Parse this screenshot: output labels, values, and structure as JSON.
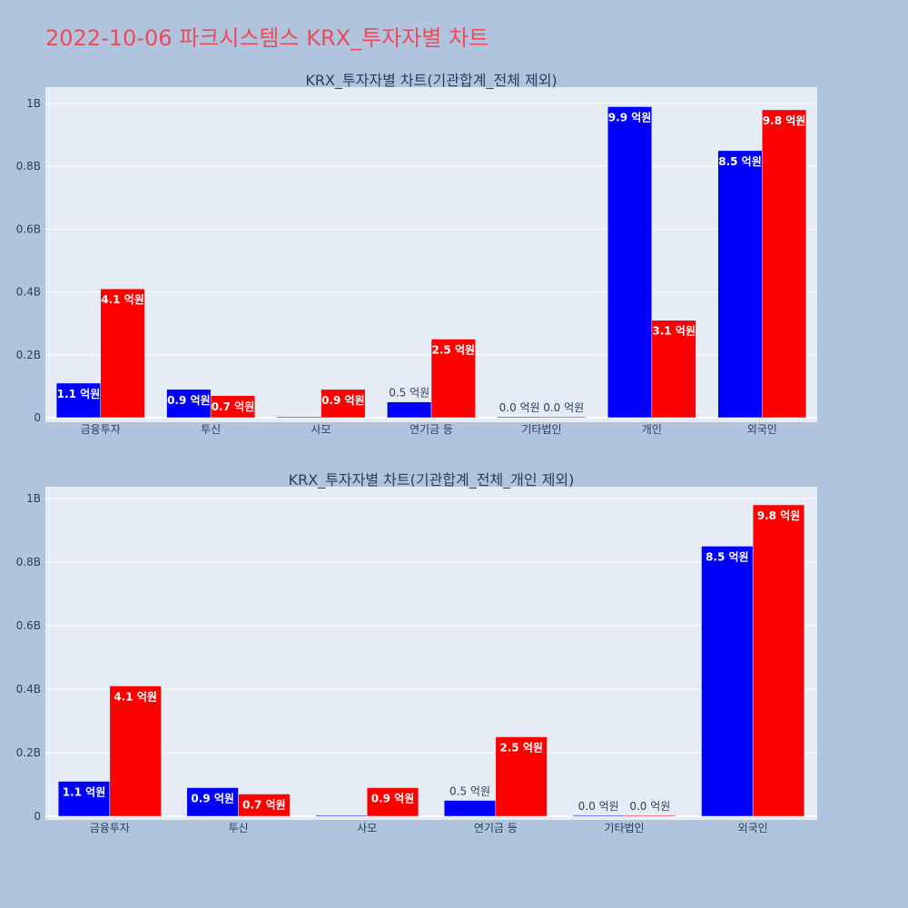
{
  "page": {
    "title": "2022-10-06 파크시스템스 KRX_투자자별 차트"
  },
  "colors": {
    "buy": "#0000ff",
    "sell": "#ff0000",
    "plot_bg": "#e5ecf6",
    "page_bg": "#b0c4de",
    "title": "#ee4a5a"
  },
  "chart_data": [
    {
      "type": "bar",
      "title": "KRX_투자자별 차트(기관합계_전체 제외)",
      "categories": [
        "금융투자",
        "투신",
        "사모",
        "연기금 등",
        "기타법인",
        "개인",
        "외국인"
      ],
      "series": [
        {
          "values": [
            110000000,
            90000000,
            0,
            50000000,
            0,
            990000000,
            850000000
          ],
          "labels": [
            "1.1 억원",
            "0.9 억원",
            "",
            "0.5 억원",
            "0.0 억원",
            "9.9 억원",
            "8.5 억원"
          ]
        },
        {
          "values": [
            410000000,
            70000000,
            90000000,
            250000000,
            0,
            310000000,
            980000000
          ],
          "labels": [
            "4.1 억원",
            "0.7 억원",
            "0.9 억원",
            "2.5 억원",
            "0.0 억원",
            "3.1 억원",
            "9.8 억원"
          ]
        }
      ],
      "ylim": [
        0,
        1050000000
      ],
      "yticks": [
        0,
        200000000,
        400000000,
        600000000,
        800000000,
        1000000000
      ],
      "ytick_labels": [
        "0",
        "0.2B",
        "0.4B",
        "0.6B",
        "0.8B",
        "1B"
      ],
      "grid": true,
      "legend": "none"
    },
    {
      "type": "bar",
      "title": "KRX_투자자별 차트(기관합계_전체_개인 제외)",
      "categories": [
        "금융투자",
        "투신",
        "사모",
        "연기금 등",
        "기타법인",
        "외국인"
      ],
      "series": [
        {
          "values": [
            110000000,
            90000000,
            0,
            50000000,
            0,
            850000000
          ],
          "labels": [
            "1.1 억원",
            "0.9 억원",
            "",
            "0.5 억원",
            "0.0 억원",
            "8.5 억원"
          ]
        },
        {
          "values": [
            410000000,
            70000000,
            90000000,
            250000000,
            0,
            980000000
          ],
          "labels": [
            "4.1 억원",
            "0.7 억원",
            "0.9 억원",
            "2.5 억원",
            "0.0 억원",
            "9.8 억원"
          ]
        }
      ],
      "ylim": [
        0,
        1050000000
      ],
      "yticks": [
        0,
        200000000,
        400000000,
        600000000,
        800000000,
        1000000000
      ],
      "ytick_labels": [
        "0",
        "0.2B",
        "0.4B",
        "0.6B",
        "0.8B",
        "1B"
      ],
      "grid": true,
      "legend": "none"
    }
  ]
}
